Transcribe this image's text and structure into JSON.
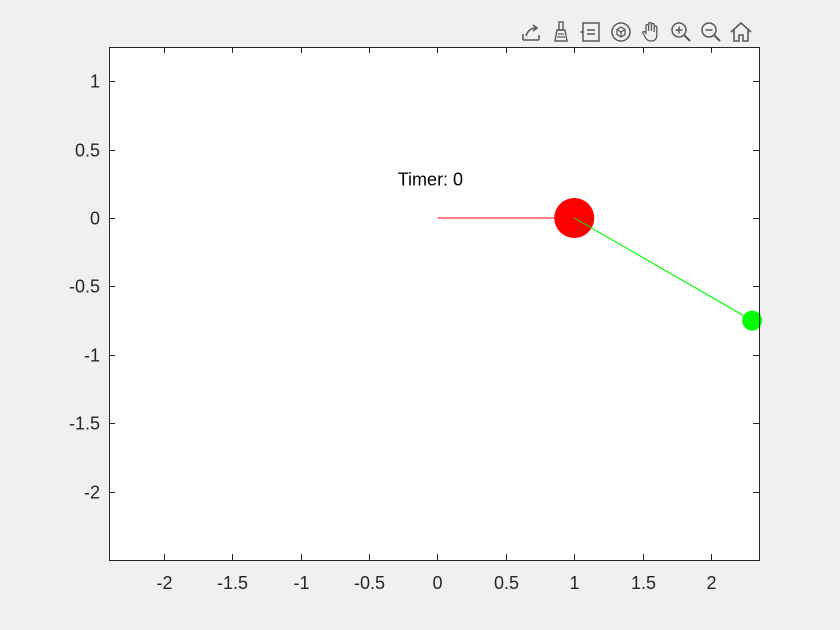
{
  "toolbar": {
    "tools": [
      {
        "icon": "export-icon"
      },
      {
        "icon": "brush-icon"
      },
      {
        "icon": "data-tips-icon"
      },
      {
        "icon": "rotate-3d-icon"
      },
      {
        "icon": "pan-hand-icon"
      },
      {
        "icon": "zoom-in-icon"
      },
      {
        "icon": "zoom-out-icon"
      },
      {
        "icon": "home-icon"
      }
    ],
    "icon_color": "#5a5a5a"
  },
  "chart_data": {
    "type": "line",
    "title": "",
    "xlabel": "",
    "ylabel": "",
    "xlim": [
      -2.4,
      2.35
    ],
    "ylim": [
      -2.5,
      1.25
    ],
    "xticks": [
      -2,
      -1.5,
      -1,
      -0.5,
      0,
      0.5,
      1,
      1.5,
      2
    ],
    "xtick_labels": [
      "-2",
      "-1.5",
      "-1",
      "-0.5",
      "0",
      "0.5",
      "1",
      "1.5",
      "2"
    ],
    "yticks": [
      1,
      0.5,
      0,
      -0.5,
      -1,
      -1.5,
      -2
    ],
    "ytick_labels": [
      "1",
      "0.5",
      "0",
      "-0.5",
      "-1",
      "-1.5",
      "-2"
    ],
    "grid": false,
    "background": "#ffffff",
    "series": [
      {
        "type": "line",
        "color": "#ff0000",
        "x": [
          0,
          1
        ],
        "y": [
          0,
          0
        ]
      },
      {
        "type": "line",
        "color": "#00ff00",
        "x": [
          1,
          2.3
        ],
        "y": [
          0,
          -0.75
        ]
      },
      {
        "type": "point",
        "color": "#ff0000",
        "x": [
          1
        ],
        "y": [
          0
        ],
        "size": "large"
      },
      {
        "type": "point",
        "color": "#00ff00",
        "x": [
          2.3
        ],
        "y": [
          -0.75
        ],
        "size": "small"
      }
    ],
    "annotations": [
      {
        "text": "Timer: 0",
        "x": -0.29,
        "y": 0.28
      }
    ]
  }
}
